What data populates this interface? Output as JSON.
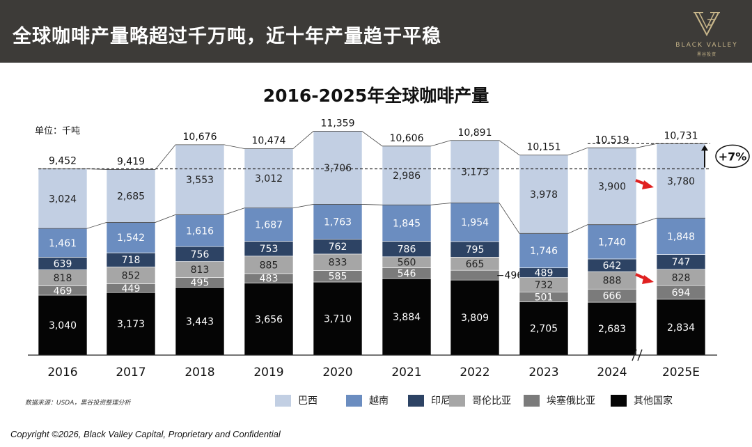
{
  "header": {
    "title": "全球咖啡产量略超过千万吨，近十年产量趋于平稳",
    "logo_name": "BLACK VALLEY",
    "logo_sub": "黑谷投资"
  },
  "unit_label": "单位：千吨",
  "source_note": "数据来源：USDA，黑谷投资整理分析",
  "copyright": "Copyright ©2026, Black Valley Capital, Proprietary and Confidential",
  "colors": {
    "brazil": "#c2cfe3",
    "vietnam": "#6b8dc0",
    "indonesia": "#2d4364",
    "colombia": "#a6a6a6",
    "ethiopia": "#7b7b7b",
    "others": "#050505",
    "arrow": "#e02020"
  },
  "chart_data": {
    "type": "bar",
    "stacked": true,
    "title": "2016-2025年全球咖啡产量",
    "ylabel": "单位：千吨",
    "ylim": [
      0,
      12000
    ],
    "categories": [
      "2016",
      "2017",
      "2018",
      "2019",
      "2020",
      "2021",
      "2022",
      "2023",
      "2024",
      "2025E"
    ],
    "totals": [
      "9,452",
      "9,419",
      "10,676",
      "10,474",
      "11,359",
      "10,606",
      "10,891",
      "10,151",
      "10,519",
      "10,731"
    ],
    "series": [
      {
        "key": "others",
        "name": "其他国家",
        "values": [
          3040,
          3173,
          3443,
          3656,
          3710,
          3884,
          3809,
          2705,
          2683,
          2834
        ],
        "labels": [
          "3,040",
          "3,173",
          "3,443",
          "3,656",
          "3,710",
          "3,884",
          "3,809",
          "2,705",
          "2,683",
          "2,834"
        ]
      },
      {
        "key": "ethiopia",
        "name": "埃塞俄比亚",
        "values": [
          469,
          449,
          495,
          483,
          585,
          546,
          496,
          501,
          666,
          694
        ],
        "labels": [
          "469",
          "449",
          "495",
          "483",
          "585",
          "546",
          "496",
          "501",
          "666",
          "694"
        ]
      },
      {
        "key": "colombia",
        "name": "哥伦比亚",
        "values": [
          818,
          852,
          813,
          885,
          833,
          560,
          665,
          732,
          888,
          828
        ],
        "labels": [
          "818",
          "852",
          "813",
          "885",
          "833",
          "560",
          "665",
          "732",
          "888",
          "828"
        ]
      },
      {
        "key": "indonesia",
        "name": "印尼",
        "values": [
          639,
          718,
          756,
          753,
          762,
          786,
          795,
          489,
          642,
          747
        ],
        "labels": [
          "639",
          "718",
          "756",
          "753",
          "762",
          "786",
          "795",
          "489",
          "642",
          "747"
        ]
      },
      {
        "key": "vietnam",
        "name": "越南",
        "values": [
          1461,
          1542,
          1616,
          1687,
          1763,
          1845,
          1954,
          1746,
          1740,
          1848
        ],
        "labels": [
          "1,461",
          "1,542",
          "1,616",
          "1,687",
          "1,763",
          "1,845",
          "1,954",
          "1,746",
          "1,740",
          "1,848"
        ]
      },
      {
        "key": "brazil",
        "name": "巴西",
        "values": [
          3024,
          2685,
          3553,
          3012,
          3706,
          2986,
          3173,
          3978,
          3900,
          3780
        ],
        "labels": [
          "3,024",
          "2,685",
          "3,553",
          "3,012",
          "3,706",
          "2,986",
          "3,173",
          "3,978",
          "3,900",
          "3,780"
        ]
      }
    ],
    "legend_order": [
      "巴西",
      "越南",
      "印尼",
      "哥伦比亚",
      "埃塞俄比亚",
      "其他国家"
    ],
    "annotations": {
      "growth_label": "+7%",
      "outside_label": "−496",
      "axis_break": "//"
    }
  }
}
